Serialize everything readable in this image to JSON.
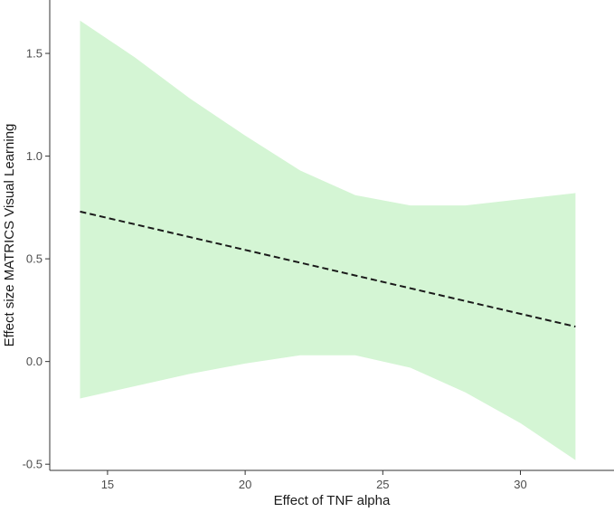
{
  "chart_data": {
    "type": "line",
    "title": "",
    "xlabel": "Effect of TNF alpha",
    "ylabel": "Effect size MATRICS Visual Learning",
    "xlim": [
      12.9,
      33.4
    ],
    "ylim": [
      -0.53,
      1.76
    ],
    "x_ticks": [
      15,
      20,
      25,
      30
    ],
    "y_ticks": [
      -0.5,
      0.0,
      0.5,
      1.0,
      1.5
    ],
    "x_tick_labels": [
      "15",
      "20",
      "25",
      "30"
    ],
    "y_tick_labels": [
      "-0.5",
      "0.0",
      "0.5",
      "1.0",
      "1.5"
    ],
    "grid": false,
    "line": {
      "style": "dashed",
      "color": "#1a1a1a",
      "x": [
        14,
        32
      ],
      "y": [
        0.73,
        0.17
      ]
    },
    "band": {
      "color": "#d4f5d4",
      "x": [
        14,
        16,
        18,
        20,
        22,
        24,
        26,
        28,
        30,
        32
      ],
      "upper": [
        1.66,
        1.48,
        1.28,
        1.1,
        0.93,
        0.81,
        0.76,
        0.76,
        0.79,
        0.82
      ],
      "lower": [
        -0.18,
        -0.12,
        -0.06,
        -0.01,
        0.03,
        0.03,
        -0.03,
        -0.15,
        -0.3,
        -0.48
      ]
    }
  }
}
